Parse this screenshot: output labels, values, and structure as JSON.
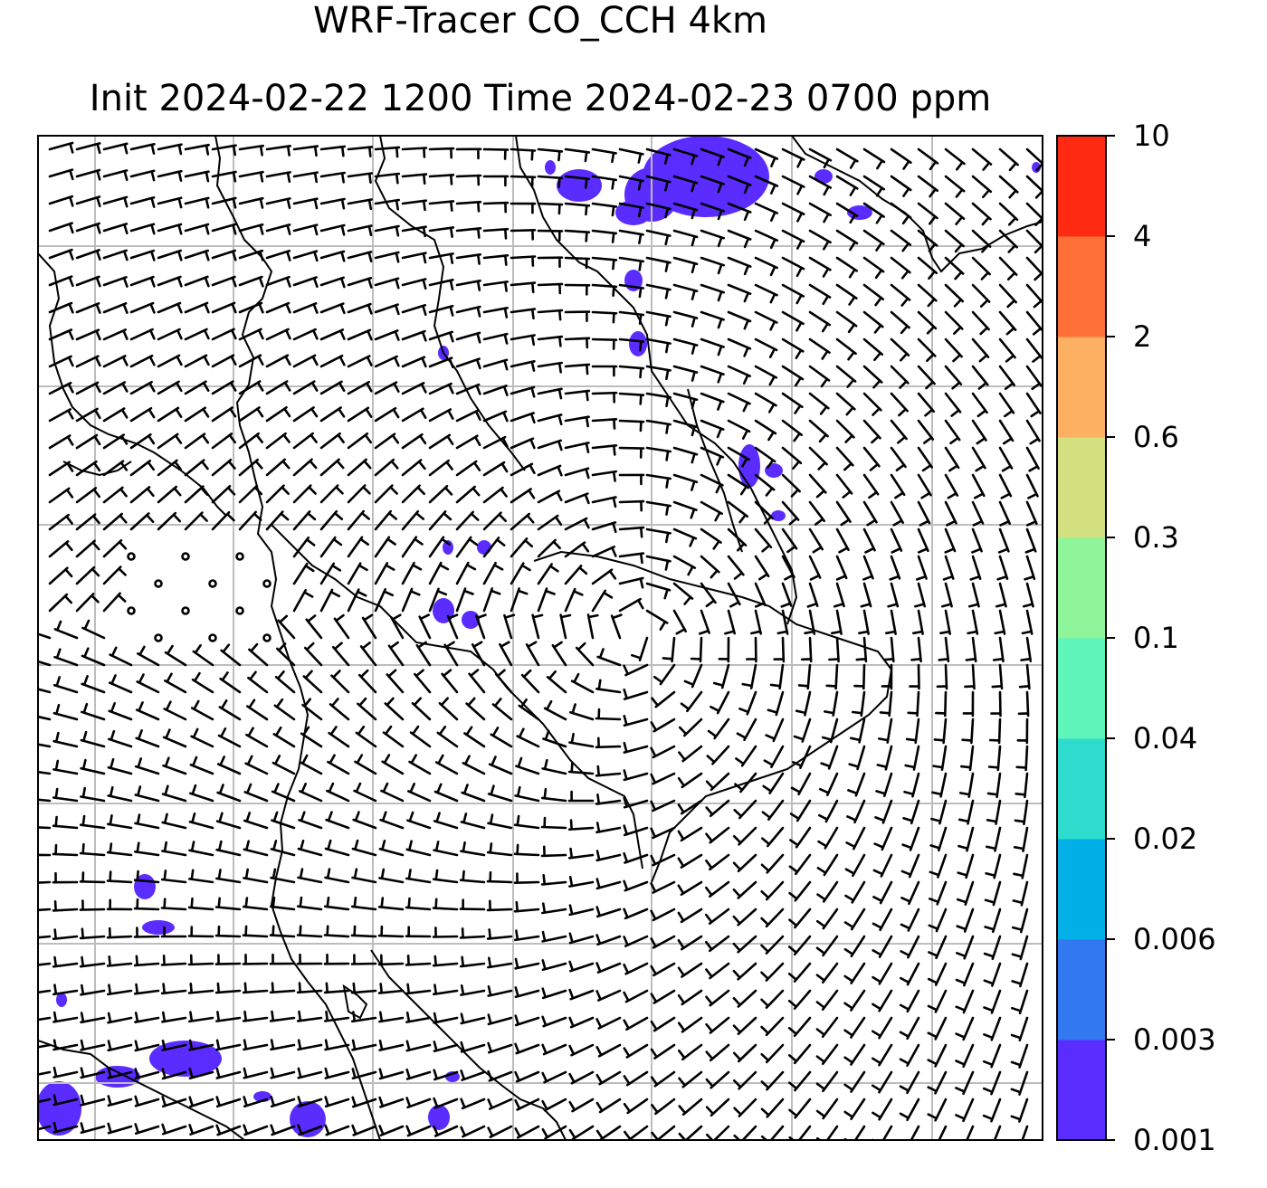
{
  "figure": {
    "title_line1": "WRF-Tracer CO_CCH 4km",
    "title_line2": "Init 2024-02-22 1200 Time 2024-02-23 0700 ppm"
  },
  "map": {
    "background": "#ffffff",
    "gridline_color": "#bdbdbd",
    "coastline_color": "#000000",
    "wind_barb_color": "#000000",
    "tracer_color_lowest": "#5a2cff"
  },
  "colorbar": {
    "levels": [
      "0.001",
      "0.003",
      "0.006",
      "0.02",
      "0.04",
      "0.1",
      "0.3",
      "0.6",
      "2",
      "4",
      "10"
    ],
    "colors": [
      "#5a2cff",
      "#3278f0",
      "#00b0e6",
      "#2ddccd",
      "#5df5b9",
      "#8ef59a",
      "#d2e080",
      "#fdb062",
      "#ff7037",
      "#ff2a12"
    ]
  }
}
